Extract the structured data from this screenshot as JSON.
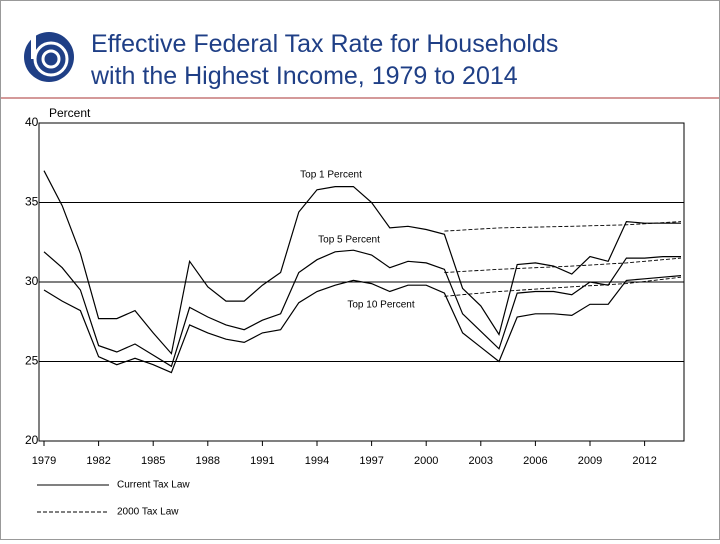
{
  "chart_data": {
    "type": "line",
    "title": [
      "Effective Federal Tax Rate for Households",
      "with the Highest Income, 1979 to 2014"
    ],
    "ylabel": "Percent",
    "xlim": [
      1979,
      2014
    ],
    "xticks": [
      1979,
      1982,
      1985,
      1988,
      1991,
      1994,
      1997,
      2000,
      2003,
      2006,
      2009,
      2012
    ],
    "ylim": [
      20,
      40
    ],
    "yticks": [
      20,
      25,
      30,
      35,
      40
    ],
    "grid": true,
    "legend": [
      "Current Tax Law",
      "2000 Tax Law"
    ],
    "legend_styles": [
      "solid",
      "dashed"
    ],
    "series": [
      {
        "name": "Top 1 Percent",
        "color": "#000000",
        "current": {
          "x": [
            1979,
            1980,
            1981,
            1982,
            1983,
            1984,
            1985,
            1986,
            1987,
            1988,
            1989,
            1990,
            1991,
            1992,
            1993,
            1994,
            1995,
            1996,
            1997,
            1998,
            1999,
            2000,
            2001,
            2002,
            2003,
            2004,
            2005,
            2006,
            2007,
            2008,
            2009,
            2010,
            2011,
            2012,
            2013,
            2014
          ],
          "values": [
            37.0,
            34.8,
            31.8,
            27.7,
            27.7,
            28.2,
            26.8,
            25.5,
            31.3,
            29.7,
            28.8,
            28.8,
            29.8,
            30.6,
            34.4,
            35.8,
            36.0,
            36.0,
            35.0,
            33.4,
            33.5,
            33.3,
            33.0,
            29.6,
            28.5,
            26.7,
            31.1,
            31.2,
            31.0,
            30.5,
            31.6,
            31.3,
            33.8,
            33.7,
            33.7,
            33.7
          ]
        },
        "tax2000": {
          "x": [
            2001,
            2004,
            2008,
            2011,
            2014
          ],
          "values": [
            33.2,
            33.4,
            33.5,
            33.6,
            33.8
          ]
        }
      },
      {
        "name": "Top 5 Percent",
        "color": "#000000",
        "current": {
          "x": [
            1979,
            1980,
            1981,
            1982,
            1983,
            1984,
            1985,
            1986,
            1987,
            1988,
            1989,
            1990,
            1991,
            1992,
            1993,
            1994,
            1995,
            1996,
            1997,
            1998,
            1999,
            2000,
            2001,
            2002,
            2003,
            2004,
            2005,
            2006,
            2007,
            2008,
            2009,
            2010,
            2011,
            2012,
            2013,
            2014
          ],
          "values": [
            31.9,
            30.9,
            29.5,
            26.0,
            25.6,
            26.1,
            25.4,
            24.7,
            28.4,
            27.8,
            27.3,
            27.0,
            27.6,
            28.0,
            30.6,
            31.4,
            31.9,
            32.0,
            31.7,
            30.9,
            31.3,
            31.2,
            30.8,
            28.0,
            26.9,
            25.8,
            29.3,
            29.4,
            29.4,
            29.2,
            30.0,
            29.8,
            31.5,
            31.5,
            31.6,
            31.6
          ]
        },
        "tax2000": {
          "x": [
            2001,
            2004,
            2008,
            2011,
            2014
          ],
          "values": [
            30.6,
            30.8,
            31.0,
            31.2,
            31.5
          ]
        }
      },
      {
        "name": "Top 10 Percent",
        "color": "#000000",
        "current": {
          "x": [
            1979,
            1980,
            1981,
            1982,
            1983,
            1984,
            1985,
            1986,
            1987,
            1988,
            1989,
            1990,
            1991,
            1992,
            1993,
            1994,
            1995,
            1996,
            1997,
            1998,
            1999,
            2000,
            2001,
            2002,
            2003,
            2004,
            2005,
            2006,
            2007,
            2008,
            2009,
            2010,
            2011,
            2012,
            2013,
            2014
          ],
          "values": [
            29.5,
            28.8,
            28.2,
            25.3,
            24.8,
            25.2,
            24.8,
            24.3,
            27.3,
            26.8,
            26.4,
            26.2,
            26.8,
            27.0,
            28.7,
            29.4,
            29.8,
            30.1,
            29.9,
            29.4,
            29.8,
            29.8,
            29.3,
            26.8,
            25.9,
            25.0,
            27.8,
            28.0,
            28.0,
            27.9,
            28.6,
            28.6,
            30.1,
            30.2,
            30.3,
            30.4
          ]
        },
        "tax2000": {
          "x": [
            2001,
            2004,
            2008,
            2011,
            2014
          ],
          "values": [
            29.1,
            29.4,
            29.7,
            29.9,
            30.3
          ]
        }
      }
    ]
  }
}
